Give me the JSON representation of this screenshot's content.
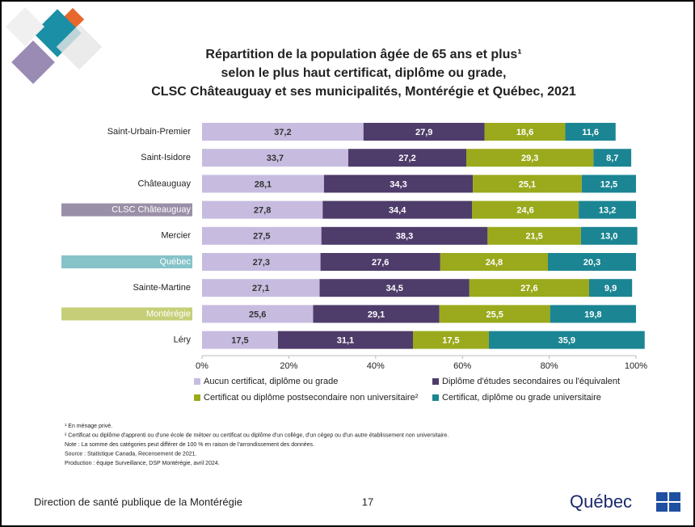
{
  "chart_data": {
    "type": "stacked-bar-horizontal",
    "title": [
      "Répartition de la population âgée de 65 ans et plus¹",
      "selon le plus haut certificat, diplôme ou grade,",
      "CLSC Châteauguay et ses municipalités, Montérégie et Québec, 2021"
    ],
    "categories": [
      "Saint-Urbain-Premier",
      "Saint-Isidore",
      "Châteauguay",
      "CLSC Châteauguay",
      "Mercier",
      "Québec",
      "Sainte-Martine",
      "Montérégie",
      "Léry"
    ],
    "category_label_backgrounds": [
      null,
      null,
      null,
      "#9a8fa8",
      null,
      "#86c3c9",
      null,
      "#c6cf78",
      null
    ],
    "series": [
      {
        "name": "Aucun certificat, diplôme ou grade",
        "color": "#c7bce0",
        "label_color": "#333333",
        "values": [
          37.2,
          33.7,
          28.1,
          27.8,
          27.5,
          27.3,
          27.1,
          25.6,
          17.5
        ],
        "value_labels": [
          "37,2",
          "33,7",
          "28,1",
          "27,8",
          "27,5",
          "27,3",
          "27,1",
          "25,6",
          "17,5"
        ]
      },
      {
        "name": "Diplôme d'études secondaires ou l'équivalent",
        "color": "#4e3c6a",
        "label_color": "#ffffff",
        "values": [
          27.9,
          27.2,
          34.3,
          34.4,
          38.3,
          27.6,
          34.5,
          29.1,
          31.1
        ],
        "value_labels": [
          "27,9",
          "27,2",
          "34,3",
          "34,4",
          "38,3",
          "27,6",
          "34,5",
          "29,1",
          "31,1"
        ]
      },
      {
        "name": "Certificat ou diplôme postsecondaire non universitaire²",
        "color": "#9aaa1c",
        "label_color": "#ffffff",
        "values": [
          18.6,
          29.3,
          25.1,
          24.6,
          21.5,
          24.8,
          27.6,
          25.5,
          17.5
        ],
        "value_labels": [
          "18,6",
          "29,3",
          "25,1",
          "24,6",
          "21,5",
          "24,8",
          "27,6",
          "25,5",
          "17,5"
        ]
      },
      {
        "name": "Certificat, diplôme ou grade universitaire",
        "color": "#1b8593",
        "label_color": "#ffffff",
        "values": [
          11.6,
          8.7,
          12.5,
          13.2,
          13.0,
          20.3,
          9.9,
          19.8,
          35.9
        ],
        "value_labels": [
          "11,6",
          "8,7",
          "12,5",
          "13,2",
          "13,0",
          "20,3",
          "9,9",
          "19,8",
          "35,9"
        ]
      }
    ],
    "xlim": [
      0,
      100
    ],
    "xticks": [
      {
        "value": 0,
        "label": "0%"
      },
      {
        "value": 20,
        "label": "20%"
      },
      {
        "value": 40,
        "label": "40%"
      },
      {
        "value": 60,
        "label": "60%"
      },
      {
        "value": 80,
        "label": "80%"
      },
      {
        "value": 100,
        "label": "100%"
      }
    ],
    "grid": false
  },
  "notes": [
    "¹ En ménage privé.",
    "² Certificat ou diplôme d'apprenti ou d'une école de métoer ou certificat ou diplôme d'un collège, d'un cégep ou d'un autre établissement non universitaire.",
    "Note : La somme des catégories peut différer de 100 % en raison de l'arrondissement des données.",
    "Source : Statistique Canada, Recensement de 2021.",
    "Production : équipe Surveillance, DSP Montérégie, avril 2024."
  ],
  "footer": {
    "organization": "Direction de santé publique de la Montérégie",
    "page": "17",
    "logo": "Québec"
  }
}
